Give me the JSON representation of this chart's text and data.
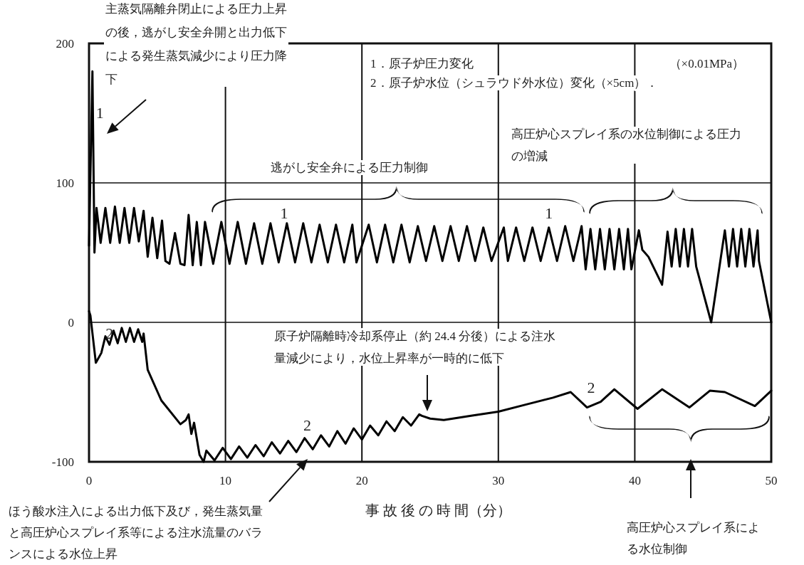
{
  "chart_data": {
    "type": "line",
    "xlabel": "事 故 後 の 時 間（分）",
    "xlim": [
      0,
      50
    ],
    "xticks": [
      0,
      10,
      20,
      30,
      40,
      50
    ],
    "ylim": [
      -100,
      200
    ],
    "yticks": [
      -100,
      0,
      100,
      200
    ],
    "grid": true,
    "series": [
      {
        "name": "1",
        "color": "#000000",
        "x": [
          0,
          0.25,
          0.4,
          0.55,
          0.85,
          1.2,
          1.55,
          1.9,
          2.25,
          2.6,
          2.95,
          3.3,
          3.65,
          4.0,
          4.3,
          4.65,
          5.0,
          5.35,
          5.6,
          5.9,
          6.3,
          6.7,
          7.0,
          7.3,
          7.6,
          7.9,
          8.2,
          8.5,
          9.1,
          9.7,
          10.3,
          10.9,
          11.5,
          12.1,
          12.7,
          13.3,
          13.9,
          14.5,
          15.1,
          15.7,
          16.3,
          16.9,
          17.5,
          18.1,
          18.7,
          19.3,
          19.6,
          20.5,
          21.1,
          21.7,
          22.3,
          22.9,
          23.5,
          24.1,
          24.7,
          25.3,
          25.9,
          26.5,
          27.1,
          27.7,
          28.3,
          28.9,
          29.5,
          30.4,
          30.7,
          31.3,
          31.9,
          32.5,
          33.1,
          33.7,
          34.3,
          34.9,
          35.5,
          36.1,
          36.4,
          36.75,
          37.1,
          37.45,
          37.8,
          38.15,
          38.5,
          38.85,
          39.2,
          39.5,
          39.75,
          40.3,
          40.55,
          41.0,
          42.0,
          42.4,
          42.7,
          43.0,
          43.3,
          43.6,
          43.9,
          44.2,
          44.5,
          45.6,
          46.6,
          46.9,
          47.2,
          47.5,
          47.8,
          48.1,
          48.4,
          48.7,
          49.0,
          49.1,
          50
        ],
        "values": [
          55,
          180,
          50,
          82,
          57,
          82,
          57,
          83,
          57,
          82,
          57,
          82,
          58,
          80,
          47,
          75,
          46,
          73,
          44,
          42,
          64,
          42,
          41,
          77,
          41,
          72,
          41,
          72,
          42,
          72,
          42,
          72,
          42,
          71,
          42,
          71,
          43,
          71,
          43,
          71,
          43,
          70,
          43,
          70,
          43,
          70,
          43,
          70,
          43,
          70,
          43,
          70,
          43,
          69,
          44,
          69,
          44,
          69,
          44,
          69,
          44,
          68,
          44,
          68,
          44,
          68,
          44,
          68,
          44,
          68,
          44,
          69,
          44,
          69,
          38,
          67,
          38,
          67,
          38,
          67,
          38,
          67,
          38,
          67,
          38,
          66,
          52,
          47,
          27,
          65,
          40,
          67,
          40,
          67,
          40,
          67,
          40,
          0,
          66,
          40,
          67,
          40,
          67,
          40,
          67,
          40,
          66,
          44,
          0
        ]
      },
      {
        "name": "2",
        "color": "#000000",
        "x": [
          0,
          0.1,
          0.5,
          0.9,
          1.2,
          1.5,
          1.8,
          2.1,
          2.4,
          2.7,
          3.0,
          3.3,
          3.6,
          3.9,
          4.0,
          4.3,
          5.3,
          6.7,
          7.1,
          7.3,
          7.5,
          7.7,
          8.1,
          8.4,
          8.6,
          9.2,
          9.8,
          10.4,
          11.0,
          11.6,
          12.2,
          12.8,
          13.4,
          14.0,
          14.6,
          15.2,
          15.8,
          16.4,
          17.0,
          17.6,
          18.2,
          18.8,
          19.4,
          20.0,
          20.6,
          21.2,
          21.8,
          22.4,
          23.0,
          23.6,
          24.2,
          24.4,
          25.0,
          26.0,
          28,
          30,
          32,
          34,
          35.3,
          36.5,
          37.5,
          38.5,
          40.2,
          42,
          44,
          45.5,
          46.6,
          48.8,
          50
        ],
        "values": [
          8,
          5,
          -29,
          -22,
          -10,
          -16,
          -6,
          -15,
          -4,
          -14,
          -4,
          -14,
          -5,
          -14,
          -8,
          -34,
          -56,
          -73,
          -70,
          -66,
          -80,
          -72,
          -95,
          -100,
          -92,
          -99,
          -90,
          -98,
          -89,
          -97,
          -88,
          -96,
          -86,
          -94,
          -85,
          -93,
          -83,
          -91,
          -81,
          -89,
          -78,
          -87,
          -76,
          -84,
          -74,
          -81,
          -71,
          -78,
          -68,
          -74,
          -66,
          -67,
          -69,
          -70,
          -67,
          -64,
          -59,
          -54,
          -50,
          -61,
          -57,
          -48,
          -62,
          -48,
          -61,
          -49,
          -50,
          -60,
          -49
        ]
      }
    ],
    "annotations": [
      "主蒸気隔離弁閉止による圧力上昇の後，逃がし安全弁開と出力低下による発生蒸気減少により圧力降下",
      "1．原子炉圧力変化",
      "（×0.01MPa）",
      "2．原子炉水位（シュラウド外水位）変化（×5cm）．",
      "逃がし安全弁による圧力制御",
      "高圧炉心スプレイ系の水位制御による圧力の増減",
      "原子炉隔離時冷却系停止（約 24.4 分後）による注水量減少により，水位上昇率が一時的に低下",
      "ほう酸水注入による出力低下及び，発生蒸気量と高圧炉心スプレイ系等による注水流量のバランスによる水位上昇",
      "高圧炉心スプレイ系による水位制御"
    ]
  }
}
